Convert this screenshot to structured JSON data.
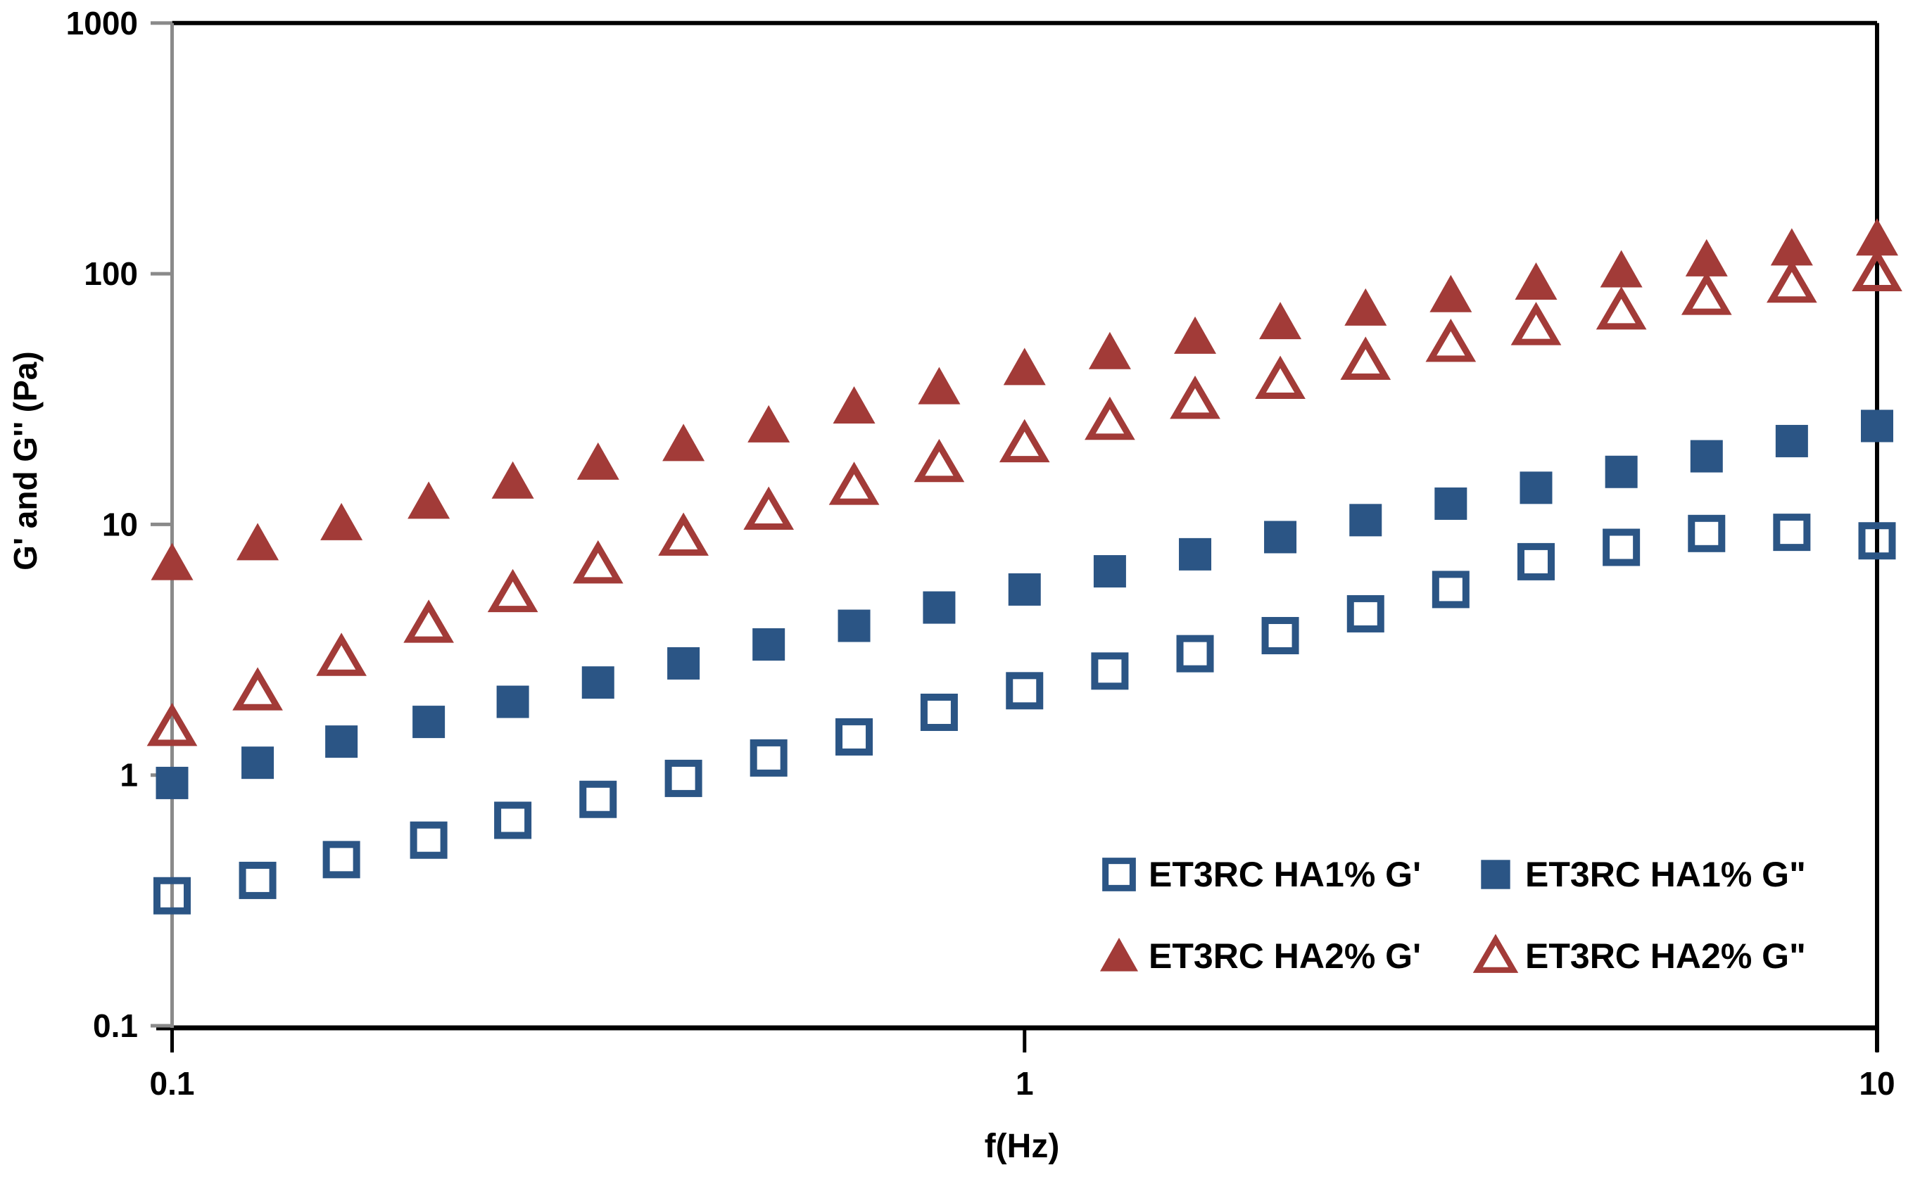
{
  "page": {
    "background": "#ffffff"
  },
  "chart_data": {
    "type": "scatter",
    "title": "",
    "xlabel": "f(Hz)",
    "ylabel": "G' and G'' (Pa)",
    "x_scale": "log",
    "y_scale": "log",
    "xlim": [
      0.1,
      10
    ],
    "ylim": [
      0.1,
      1000
    ],
    "grid": false,
    "legend_position": "inside-bottom-right",
    "x_ticks": [
      {
        "value": 0.1,
        "label": "0.1"
      },
      {
        "value": 1,
        "label": "1"
      },
      {
        "value": 10,
        "label": "10"
      }
    ],
    "y_ticks": [
      {
        "value": 1000,
        "label": "1000"
      },
      {
        "value": 100,
        "label": "100"
      },
      {
        "value": 10,
        "label": "10"
      },
      {
        "value": 1,
        "label": "1"
      },
      {
        "value": 0.1,
        "label": "0.1"
      }
    ],
    "x": [
      0.1,
      0.126,
      0.158,
      0.2,
      0.251,
      0.316,
      0.398,
      0.501,
      0.631,
      0.794,
      1,
      1.259,
      1.585,
      1.995,
      2.512,
      3.162,
      3.981,
      5.012,
      6.31,
      7.943,
      10
    ],
    "series": [
      {
        "name": "ET3RC HA1% G'",
        "marker": "open-square",
        "color": "#2B5585",
        "values": [
          0.33,
          0.38,
          0.46,
          0.55,
          0.66,
          0.8,
          0.97,
          1.17,
          1.42,
          1.78,
          2.17,
          2.6,
          3.05,
          3.6,
          4.4,
          5.5,
          7.1,
          8.1,
          9.2,
          9.3,
          8.6
        ]
      },
      {
        "name": "ET3RC HA1% G\"",
        "marker": "filled-square",
        "color": "#2B5585",
        "values": [
          0.93,
          1.12,
          1.36,
          1.63,
          1.96,
          2.34,
          2.79,
          3.32,
          3.94,
          4.66,
          5.5,
          6.5,
          7.6,
          8.9,
          10.4,
          12.1,
          14,
          16.2,
          18.7,
          21.5,
          24.7
        ]
      },
      {
        "name": "ET3RC HA2% G'",
        "marker": "filled-triangle",
        "color": "#A23B38",
        "values": [
          7,
          8.4,
          10.1,
          12.3,
          14.8,
          17.6,
          20.9,
          24.8,
          29.5,
          35.2,
          42,
          48.6,
          56,
          64,
          72.5,
          82,
          92,
          103,
          114,
          126,
          138
        ]
      },
      {
        "name": "ET3RC HA2% G\"",
        "marker": "open-triangle",
        "color": "#A23B38",
        "values": [
          1.55,
          2.15,
          2.95,
          4,
          5.3,
          6.9,
          8.9,
          11.3,
          14.2,
          17.5,
          21,
          25.8,
          31.3,
          37.6,
          44.8,
          52.8,
          61.6,
          71.1,
          81.3,
          91,
          101
        ]
      }
    ],
    "draw_order": [
      2,
      3,
      1,
      0
    ],
    "legend": {
      "rows": [
        [
          0,
          1
        ],
        [
          2,
          3
        ]
      ]
    }
  },
  "axes_style": {
    "y_axis_color": "#8A8A8A",
    "x_axis_color": "#000000",
    "border_color": "#000000",
    "tick_label_color": "#000000"
  }
}
